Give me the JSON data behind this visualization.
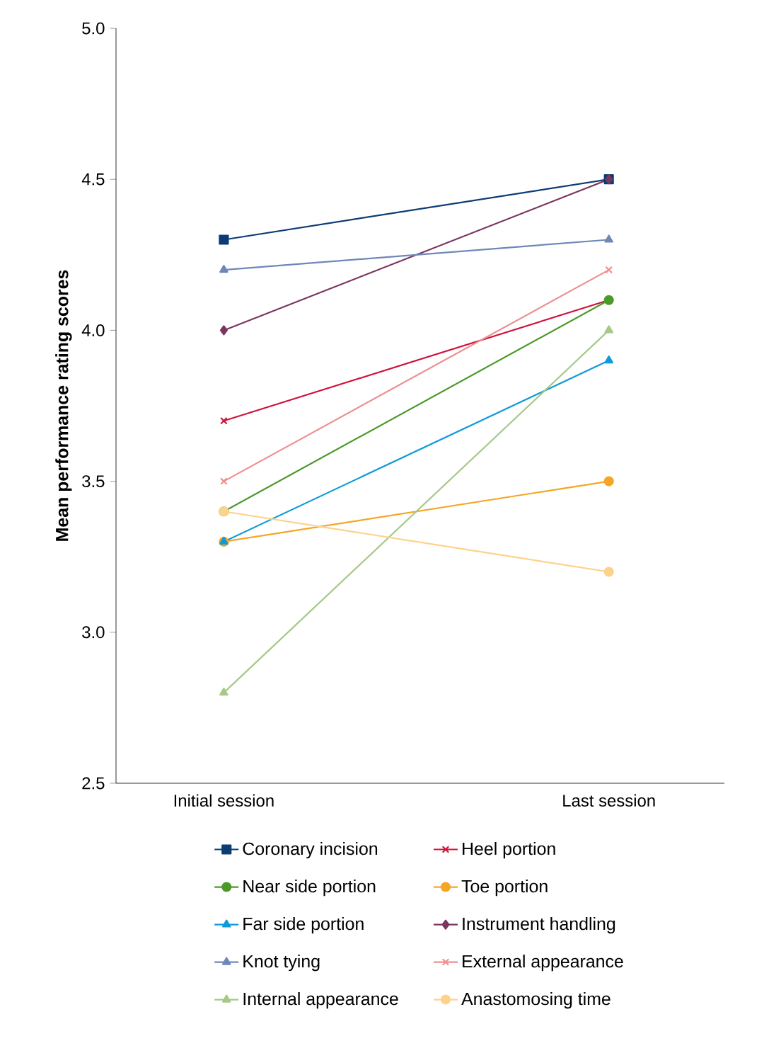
{
  "chart_data": {
    "type": "line",
    "ylabel": "Mean performance rating scores",
    "categories": [
      "Initial session",
      "Last session"
    ],
    "ylim": [
      2.5,
      5.0
    ],
    "yticks": [
      {
        "value": 2.5,
        "label": "2.5"
      },
      {
        "value": 3.0,
        "label": "3.0"
      },
      {
        "value": 3.5,
        "label": "3.5"
      },
      {
        "value": 4.0,
        "label": "4.0"
      },
      {
        "value": 4.5,
        "label": "4.5"
      },
      {
        "value": 5.0,
        "label": "5.0"
      }
    ],
    "legend": "bottom",
    "grid": false,
    "line_style": "solid",
    "series": [
      {
        "name": "Coronary incision",
        "color": "#0b3c73",
        "marker": "square",
        "values": [
          4.3,
          4.5
        ]
      },
      {
        "name": "Heel portion",
        "color": "#d0103a",
        "marker": "cross",
        "values": [
          3.7,
          4.1
        ]
      },
      {
        "name": "Near side portion",
        "color": "#4c9a2a",
        "marker": "circle",
        "values": [
          3.4,
          4.1
        ]
      },
      {
        "name": "Toe portion",
        "color": "#f5a623",
        "marker": "circle",
        "values": [
          3.3,
          3.5
        ]
      },
      {
        "name": "Far side portion",
        "color": "#0f9bd7",
        "marker": "triangle",
        "values": [
          3.3,
          3.9
        ]
      },
      {
        "name": "Instrument handling",
        "color": "#7b3560",
        "marker": "diamond",
        "values": [
          4.0,
          4.5
        ]
      },
      {
        "name": "Knot tying",
        "color": "#6f87b8",
        "marker": "triangle",
        "values": [
          4.2,
          4.3
        ]
      },
      {
        "name": "External appearance",
        "color": "#ee8f8f",
        "marker": "cross",
        "values": [
          3.5,
          4.2
        ]
      },
      {
        "name": "Internal appearance",
        "color": "#a8c888",
        "marker": "triangle",
        "values": [
          2.8,
          4.0
        ]
      },
      {
        "name": "Anastomosing time",
        "color": "#fdd28a",
        "marker": "circle",
        "values": [
          3.4,
          3.2
        ]
      }
    ]
  }
}
